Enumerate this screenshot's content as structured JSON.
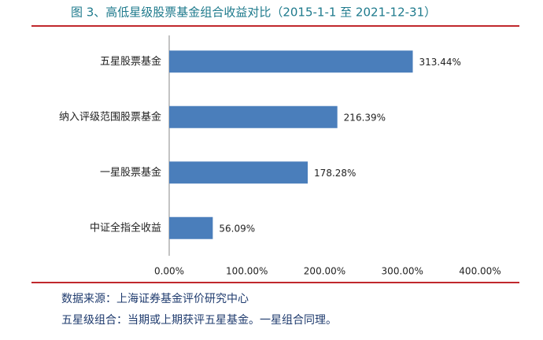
{
  "chart_data": {
    "type": "hbar",
    "title": "图 3、高低星级股票基金组合收益对比（2015-1-1 至 2021-12-31）",
    "categories": [
      "五星股票基金",
      "纳入评级范围股票基金",
      "一星股票基金",
      "中证全指全收益"
    ],
    "values": [
      313.44,
      216.39,
      178.28,
      56.09
    ],
    "value_labels": [
      "313.44%",
      "216.39%",
      "178.28%",
      "56.09%"
    ],
    "color": "#4a7ebb",
    "xlim": [
      0,
      400
    ],
    "xticks": [
      {
        "value": 0,
        "label": "0.00%"
      },
      {
        "value": 100,
        "label": "100.00%"
      },
      {
        "value": 200,
        "label": "200.00%"
      },
      {
        "value": 300,
        "label": "300.00%"
      },
      {
        "value": 400,
        "label": "400.00%"
      }
    ],
    "grid": false,
    "notes": [
      "数据来源：上海证券基金评价研究中心",
      "五星级组合：当期或上期获评五星基金。一星组合同理。"
    ]
  }
}
